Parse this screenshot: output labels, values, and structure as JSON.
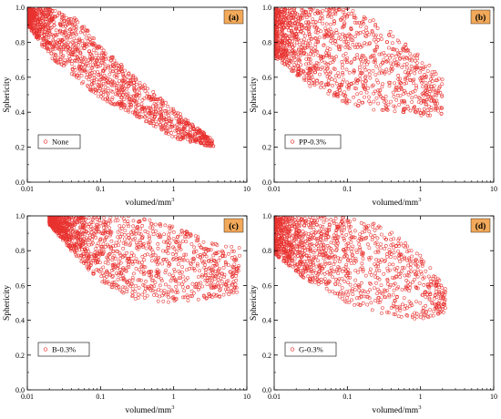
{
  "figure": {
    "point_color": "#e8322f",
    "panel_label_bg": "#f2a95a"
  },
  "chart_data": [
    {
      "type": "scatter",
      "panel_label": "(a)",
      "xlabel": "volume",
      "ylabel": "Sphericity",
      "x_scale": "log",
      "xlim": [
        0.01,
        10
      ],
      "ylim": [
        0.0,
        1.0
      ],
      "xticks": [
        "0.01",
        "0.1",
        "1",
        "10"
      ],
      "yticks": [
        "0.0",
        "0.2",
        "0.4",
        "0.6",
        "0.8",
        "1.0"
      ],
      "legend": "None",
      "legend_position": "lower-left",
      "envelope": {
        "x": [
          0.01,
          0.02,
          0.05,
          0.1,
          0.3,
          1.0,
          3.5
        ],
        "y_low": [
          0.9,
          0.72,
          0.58,
          0.48,
          0.38,
          0.25,
          0.2
        ],
        "y_high": [
          1.0,
          1.0,
          0.93,
          0.78,
          0.6,
          0.42,
          0.24
        ]
      },
      "series": [
        {
          "label": "None",
          "points": 1400
        }
      ]
    },
    {
      "type": "scatter",
      "panel_label": "(b)",
      "xlabel": "volume",
      "ylabel": "Sphericity",
      "x_scale": "log",
      "xlim": [
        0.01,
        10
      ],
      "ylim": [
        0.0,
        1.0
      ],
      "xticks": [
        "0.01",
        "0.1",
        "1",
        "10"
      ],
      "yticks": [
        "0.0",
        "0.2",
        "0.4",
        "0.6",
        "0.8",
        "1.0"
      ],
      "legend": "PP-0.3%",
      "legend_position": "lower-left",
      "envelope": {
        "x": [
          0.01,
          0.03,
          0.1,
          0.3,
          1.0,
          2.0
        ],
        "y_low": [
          0.72,
          0.55,
          0.45,
          0.4,
          0.38,
          0.38
        ],
        "y_high": [
          1.0,
          1.0,
          1.0,
          0.9,
          0.72,
          0.6
        ]
      },
      "series": [
        {
          "label": "PP-0.3%",
          "points": 1300
        }
      ]
    },
    {
      "type": "scatter",
      "panel_label": "(c)",
      "xlabel": "volume",
      "ylabel": "Sphericity",
      "x_scale": "log",
      "xlim": [
        0.01,
        10
      ],
      "ylim": [
        0.0,
        1.0
      ],
      "xticks": [
        "0.01",
        "0.1",
        "1",
        "10"
      ],
      "yticks": [
        "0.0",
        "0.2",
        "0.4",
        "0.6",
        "0.8",
        "1.0"
      ],
      "legend": "B-0.3%",
      "legend_position": "lower-left",
      "envelope": {
        "x": [
          0.02,
          0.05,
          0.1,
          0.3,
          1.0,
          3.0,
          8.0
        ],
        "y_low": [
          0.95,
          0.75,
          0.62,
          0.52,
          0.5,
          0.52,
          0.55
        ],
        "y_high": [
          1.0,
          1.0,
          1.0,
          1.0,
          0.95,
          0.85,
          0.82
        ]
      },
      "series": [
        {
          "label": "B-0.3%",
          "points": 1400
        }
      ]
    },
    {
      "type": "scatter",
      "panel_label": "(d)",
      "xlabel": "volume",
      "ylabel": "Sphericity",
      "x_scale": "log",
      "xlim": [
        0.01,
        10
      ],
      "ylim": [
        0.0,
        1.0
      ],
      "xticks": [
        "0.01",
        "0.1",
        "1",
        "10"
      ],
      "yticks": [
        "0.0",
        "0.2",
        "0.4",
        "0.6",
        "0.8",
        "1.0"
      ],
      "legend": "G-0.3%",
      "legend_position": "lower-left",
      "envelope": {
        "x": [
          0.01,
          0.03,
          0.1,
          0.3,
          1.0,
          2.2
        ],
        "y_low": [
          0.78,
          0.62,
          0.5,
          0.44,
          0.4,
          0.45
        ],
        "y_high": [
          1.0,
          1.0,
          1.0,
          0.95,
          0.78,
          0.58
        ]
      },
      "series": [
        {
          "label": "G-0.3%",
          "points": 1300
        }
      ]
    }
  ]
}
